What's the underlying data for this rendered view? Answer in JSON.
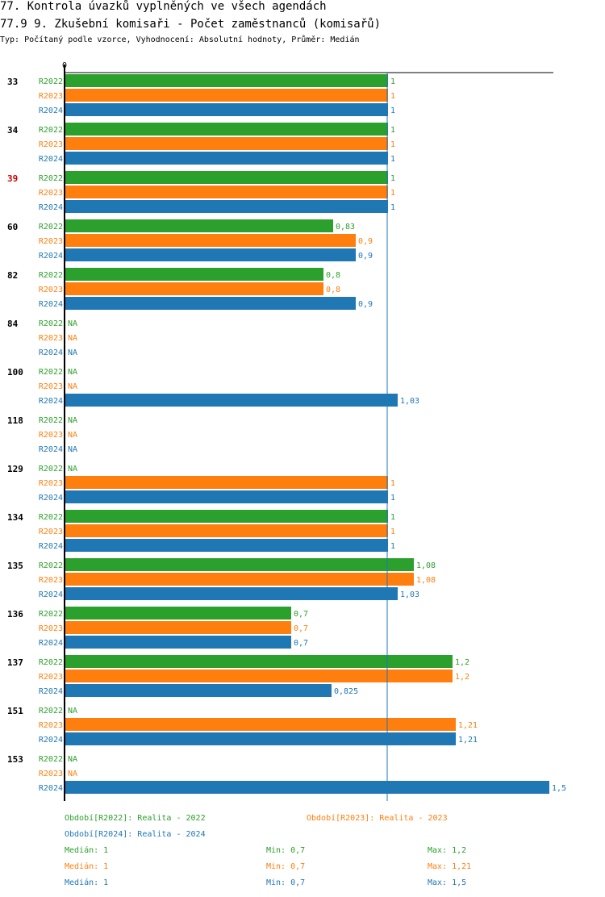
{
  "header": {
    "title1": "77. Kontrola úvazků vyplněných ve všech agendách",
    "title2": "77.9 9. Zkušební komisaři - Počet zaměstnanců (komisařů)",
    "subtitle": "Typ: Počítaný podle vzorce, Vyhodnocení: Absolutní hodnoty, Průměr: Medián"
  },
  "colors": {
    "R2022": "#2ca02c",
    "R2023": "#ff7f0e",
    "R2024": "#1f77b4",
    "highlight_label": "#cc0000",
    "axis": "#000000",
    "median_line": "#1f77b4"
  },
  "chart_data": {
    "type": "bar",
    "orientation": "horizontal",
    "xlim": [
      0,
      1.5
    ],
    "axis_tick_label": "0",
    "median_value": 1,
    "series_names": [
      "R2022",
      "R2023",
      "R2024"
    ],
    "missing_label": "NA",
    "highlight_category": "39",
    "categories": [
      "33",
      "34",
      "39",
      "60",
      "82",
      "84",
      "100",
      "118",
      "129",
      "134",
      "135",
      "136",
      "137",
      "151",
      "153"
    ],
    "series": [
      {
        "name": "R2022",
        "values": [
          1,
          1,
          1,
          0.83,
          0.8,
          null,
          null,
          null,
          null,
          1,
          1.08,
          0.7,
          1.2,
          null,
          null
        ],
        "labels": [
          "1",
          "1",
          "1",
          "0,83",
          "0,8",
          "NA",
          "NA",
          "NA",
          "NA",
          "1",
          "1,08",
          "0,7",
          "1,2",
          "NA",
          "NA"
        ]
      },
      {
        "name": "R2023",
        "values": [
          1,
          1,
          1,
          0.9,
          0.8,
          null,
          null,
          null,
          1,
          1,
          1.08,
          0.7,
          1.2,
          1.21,
          null
        ],
        "labels": [
          "1",
          "1",
          "1",
          "0,9",
          "0,8",
          "NA",
          "NA",
          "NA",
          "1",
          "1",
          "1,08",
          "0,7",
          "1,2",
          "1,21",
          "NA"
        ]
      },
      {
        "name": "R2024",
        "values": [
          1,
          1,
          1,
          0.9,
          0.9,
          null,
          1.03,
          null,
          1,
          1,
          1.03,
          0.7,
          0.825,
          1.21,
          1.5
        ],
        "labels": [
          "1",
          "1",
          "1",
          "0,9",
          "0,9",
          "NA",
          "1,03",
          "NA",
          "1",
          "1",
          "1,03",
          "0,7",
          "0,825",
          "1,21",
          "1,5"
        ]
      }
    ]
  },
  "legend": {
    "period_2022": "Období[R2022]: Realita - 2022",
    "period_2023": "Období[R2023]: Realita - 2023",
    "period_2024": "Období[R2024]: Realita - 2024",
    "stats": [
      {
        "median": "Medián: 1",
        "min": "Min: 0,7",
        "max": "Max: 1,2"
      },
      {
        "median": "Medián: 1",
        "min": "Min: 0,7",
        "max": "Max: 1,21"
      },
      {
        "median": "Medián: 1",
        "min": "Min: 0,7",
        "max": "Max: 1,5"
      }
    ]
  }
}
